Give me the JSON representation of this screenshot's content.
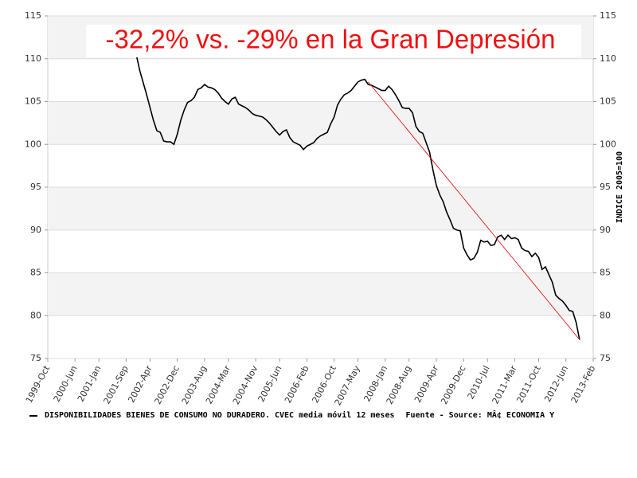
{
  "chart_data": {
    "type": "line",
    "title": "-32,2% vs. -29% en la Gran Depresión",
    "y2_label": "INDICE 2005=100",
    "source": "Fuente - Source: MÂ¢ ECONOMIA Y",
    "xlim": [
      "1999-Oct",
      "2013-Feb"
    ],
    "xticks": [
      "1999-Oct",
      "2000-Jun",
      "2001-Jan",
      "2001-Sep",
      "2002-Apr",
      "2002-Dec",
      "2003-Aug",
      "2004-Mar",
      "2004-Nov",
      "2005-Jun",
      "2006-Feb",
      "2006-Oct",
      "2007-May",
      "2008-Jan",
      "2008-Aug",
      "2009-Apr",
      "2009-Dec",
      "2010-Jul",
      "2011-Mar",
      "2011-Oct",
      "2012-Jun",
      "2013-Feb"
    ],
    "ylim": [
      75,
      115
    ],
    "yticks": [
      75,
      80,
      85,
      90,
      95,
      100,
      105,
      110,
      115
    ],
    "y2lim": [
      75,
      115
    ],
    "y2ticks": [
      75,
      80,
      85,
      90,
      95,
      100,
      105,
      110,
      115
    ],
    "grid": true,
    "x": [
      "2001-Dec",
      "2002-Jan",
      "2002-Feb",
      "2002-Mar",
      "2002-Apr",
      "2002-May",
      "2002-Jun",
      "2002-Jul",
      "2002-Aug",
      "2002-Sep",
      "2002-Oct",
      "2002-Nov",
      "2002-Dec",
      "2003-Jan",
      "2003-Feb",
      "2003-Mar",
      "2003-Apr",
      "2003-May",
      "2003-Jun",
      "2003-Jul",
      "2003-Aug",
      "2003-Sep",
      "2003-Oct",
      "2003-Nov",
      "2003-Dec",
      "2004-Jan",
      "2004-Feb",
      "2004-Mar",
      "2004-Apr",
      "2004-May",
      "2004-Jun",
      "2004-Jul",
      "2004-Aug",
      "2004-Sep",
      "2004-Oct",
      "2004-Nov",
      "2004-Dec",
      "2005-Jan",
      "2005-Feb",
      "2005-Mar",
      "2005-Apr",
      "2005-May",
      "2005-Jun",
      "2005-Jul",
      "2005-Aug",
      "2005-Sep",
      "2005-Oct",
      "2005-Nov",
      "2005-Dec",
      "2006-Jan",
      "2006-Feb",
      "2006-Mar",
      "2006-Apr",
      "2006-May",
      "2006-Jun",
      "2006-Jul",
      "2006-Aug",
      "2006-Sep",
      "2006-Oct",
      "2006-Nov",
      "2006-Dec",
      "2007-Jan",
      "2007-Feb",
      "2007-Mar",
      "2007-Apr",
      "2007-May",
      "2007-Jun",
      "2007-Jul",
      "2007-Aug",
      "2007-Sep",
      "2007-Oct",
      "2007-Nov",
      "2007-Dec",
      "2008-Jan",
      "2008-Feb",
      "2008-Mar",
      "2008-Apr",
      "2008-May",
      "2008-Jun",
      "2008-Jul",
      "2008-Aug",
      "2008-Sep",
      "2008-Oct",
      "2008-Nov",
      "2008-Dec",
      "2009-Jan",
      "2009-Feb",
      "2009-Mar",
      "2009-Apr",
      "2009-May",
      "2009-Jun",
      "2009-Jul",
      "2009-Aug",
      "2009-Sep",
      "2009-Oct",
      "2009-Nov",
      "2009-Dec",
      "2010-Jan",
      "2010-Feb",
      "2010-Mar",
      "2010-Apr",
      "2010-May",
      "2010-Jun",
      "2010-Jul",
      "2010-Aug",
      "2010-Sep",
      "2010-Oct",
      "2010-Nov",
      "2010-Dec",
      "2011-Jan",
      "2011-Feb",
      "2011-Mar",
      "2011-Apr",
      "2011-May",
      "2011-Jun",
      "2011-Jul",
      "2011-Aug",
      "2011-Sep",
      "2011-Oct",
      "2011-Nov",
      "2011-Dec",
      "2012-Jan",
      "2012-Feb",
      "2012-Mar",
      "2012-Apr",
      "2012-May",
      "2012-Jun",
      "2012-Jul",
      "2012-Aug",
      "2012-Sep",
      "2012-Oct"
    ],
    "series": [
      {
        "name": "DISPONIBILIDADES BIENES DE CONSUMO NO DURADERO. CVEC media móvil 12 meses",
        "color": "#000000",
        "values": [
          110.4,
          108.6,
          107.2,
          105.8,
          104.3,
          102.8,
          101.6,
          101.4,
          100.4,
          100.3,
          100.3,
          100.0,
          101.2,
          102.8,
          104.0,
          104.9,
          105.1,
          105.5,
          106.4,
          106.6,
          107.0,
          106.7,
          106.6,
          106.4,
          106.0,
          105.4,
          105.0,
          104.7,
          105.3,
          105.5,
          104.7,
          104.5,
          104.3,
          104.0,
          103.6,
          103.4,
          103.3,
          103.2,
          102.9,
          102.5,
          102.0,
          101.5,
          101.1,
          101.5,
          101.7,
          100.8,
          100.3,
          100.1,
          99.9,
          99.4,
          99.8,
          100.0,
          100.2,
          100.7,
          101.0,
          101.2,
          101.4,
          102.4,
          103.2,
          104.6,
          105.3,
          105.8,
          106.0,
          106.3,
          106.8,
          107.3,
          107.5,
          107.6,
          107.0,
          106.9,
          106.7,
          106.5,
          106.3,
          106.3,
          106.8,
          106.4,
          105.8,
          105.1,
          104.3,
          104.2,
          104.2,
          103.7,
          102.1,
          101.5,
          101.3,
          100.2,
          99.1,
          97.0,
          95.2,
          94.1,
          93.3,
          92.1,
          91.2,
          90.2,
          90.0,
          89.9,
          87.9,
          87.1,
          86.5,
          86.7,
          87.4,
          88.8,
          88.6,
          88.7,
          88.2,
          88.3,
          89.2,
          89.4,
          88.9,
          89.4,
          89.0,
          89.1,
          88.9,
          87.9,
          87.6,
          87.5,
          86.9,
          87.3,
          86.8,
          85.4,
          85.7,
          84.8,
          83.9,
          82.4,
          82.0,
          81.7,
          81.2,
          80.6,
          80.5,
          79.2,
          77.2
        ]
      }
    ],
    "trend_line": {
      "color": "#e00000",
      "x": [
        "2007-Aug",
        "2012-Oct"
      ],
      "values": [
        107.3,
        77.2
      ]
    }
  }
}
